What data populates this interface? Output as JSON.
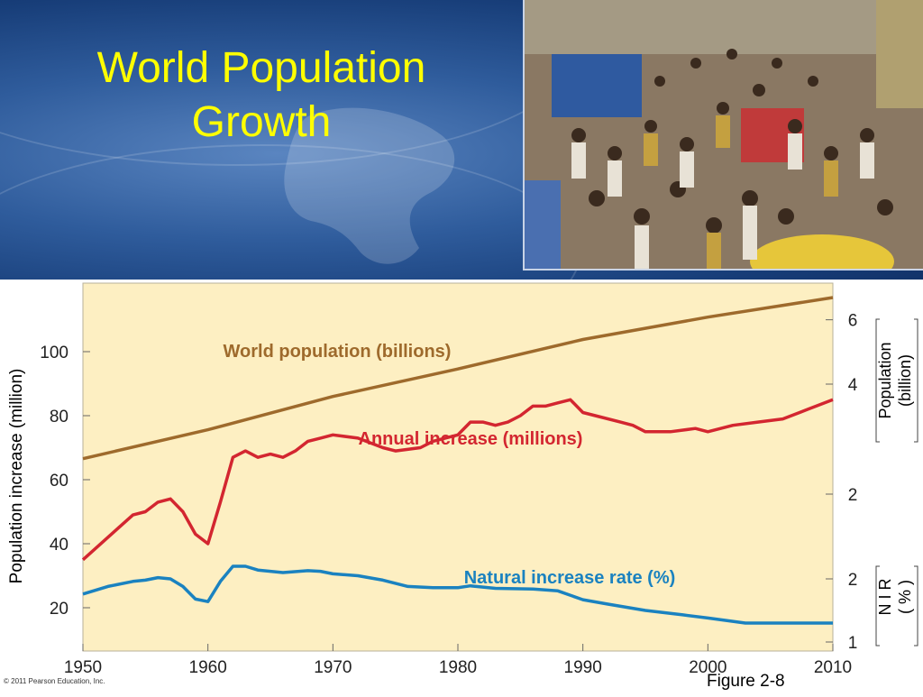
{
  "slide": {
    "title_line1": "World Population",
    "title_line2": "Growth",
    "figure_label": "Figure 2-8",
    "copyright": "© 2011 Pearson Education, Inc."
  },
  "colors": {
    "title": "#ffff00",
    "chart_background": "#fdefc2",
    "world_population": "#9e6a2c",
    "annual_increase": "#d32630",
    "natural_increase": "#1a82c0"
  },
  "chart_data": {
    "type": "line",
    "x_ticks": [
      "1950",
      "1960",
      "1970",
      "1980",
      "1990",
      "2000",
      "2010"
    ],
    "xlim": [
      1950,
      2010
    ],
    "grid": false,
    "left_axis": {
      "label": "Population increase (million)",
      "ticks": [
        "20",
        "40",
        "60",
        "80",
        "100"
      ]
    },
    "right_axis_population": {
      "label_line1": "Population",
      "label_line2": "(billion)",
      "ticks": [
        "2",
        "4",
        "6"
      ]
    },
    "right_axis_nir": {
      "label_line1": "N I R",
      "label_line2": "( % )",
      "ticks": [
        "1",
        "2"
      ]
    },
    "series": [
      {
        "name": "World population (billions)",
        "axis": "population",
        "x": [
          1950,
          1960,
          1970,
          1980,
          1990,
          2000,
          2010
        ],
        "values": [
          2.5,
          3.0,
          3.7,
          4.4,
          5.3,
          6.1,
          6.9
        ]
      },
      {
        "name": "Annual increase (millions)",
        "axis": "left",
        "x": [
          1950,
          1952,
          1954,
          1955,
          1956,
          1957,
          1958,
          1959,
          1960,
          1961,
          1962,
          1963,
          1964,
          1965,
          1966,
          1967,
          1968,
          1969,
          1970,
          1972,
          1974,
          1975,
          1977,
          1978,
          1980,
          1981,
          1982,
          1983,
          1984,
          1985,
          1986,
          1987,
          1988,
          1989,
          1990,
          1991,
          1993,
          1994,
          1995,
          1997,
          1999,
          2000,
          2002,
          2004,
          2006,
          2008,
          2010
        ],
        "values": [
          35,
          42,
          49,
          50,
          53,
          54,
          50,
          43,
          40,
          53,
          67,
          69,
          67,
          68,
          67,
          69,
          72,
          73,
          74,
          73,
          70,
          69,
          70,
          72,
          74,
          78,
          78,
          77,
          78,
          80,
          83,
          83,
          84,
          85,
          81,
          80,
          78,
          77,
          75,
          75,
          76,
          75,
          77,
          78,
          79,
          82,
          85
        ]
      },
      {
        "name": "Natural increase rate (%)",
        "axis": "nir",
        "x": [
          1950,
          1952,
          1954,
          1955,
          1956,
          1957,
          1958,
          1959,
          1960,
          1961,
          1962,
          1963,
          1964,
          1965,
          1966,
          1968,
          1969,
          1970,
          1972,
          1974,
          1976,
          1978,
          1980,
          1981,
          1983,
          1986,
          1988,
          1990,
          1992,
          1995,
          1998,
          2000,
          2003,
          2005,
          2008,
          2010
        ],
        "values": [
          1.76,
          1.88,
          1.96,
          1.98,
          2.02,
          2.0,
          1.88,
          1.68,
          1.64,
          1.96,
          2.2,
          2.2,
          2.14,
          2.12,
          2.1,
          2.13,
          2.12,
          2.08,
          2.05,
          1.98,
          1.88,
          1.86,
          1.86,
          1.89,
          1.85,
          1.84,
          1.81,
          1.67,
          1.6,
          1.5,
          1.43,
          1.38,
          1.3,
          1.3,
          1.3,
          1.3
        ]
      }
    ]
  }
}
